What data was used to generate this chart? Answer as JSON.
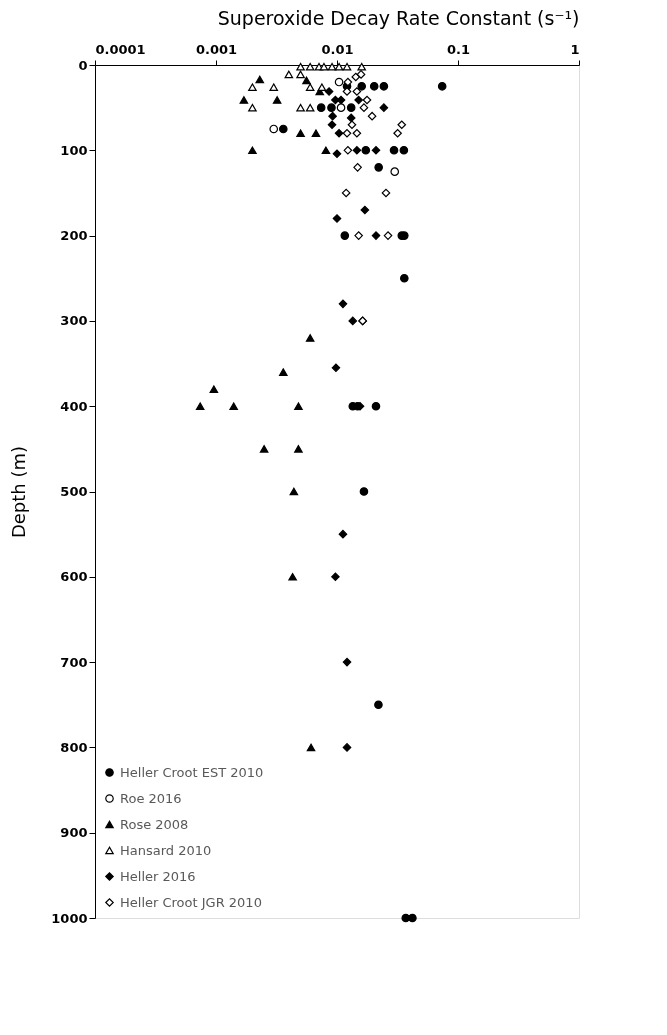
{
  "chart_data": {
    "type": "scatter",
    "title": "Superoxide Decay Rate Constant (s⁻¹)",
    "ylabel": "Depth (m)",
    "log": "x",
    "xlim": [
      0.0001,
      1
    ],
    "xticks": [
      0.0001,
      0.001,
      0.01,
      0.1,
      1
    ],
    "ylim": [
      1000,
      0
    ],
    "yticks": [
      0,
      100,
      200,
      300,
      400,
      500,
      600,
      700,
      800,
      900,
      1000
    ],
    "grid": false,
    "legend": "bottom left",
    "series": [
      {
        "name": "Heller Croot EST 2010",
        "color": "#000000",
        "marker": "circle",
        "x": [
          0.074,
          0.0121,
          0.016,
          0.0203,
          0.0244,
          0.0074,
          0.009,
          0.0131,
          0.0036,
          0.0173,
          0.0296,
          0.0357,
          0.0221,
          0.0116,
          0.0343,
          0.036,
          0.036,
          0.0135,
          0.0148,
          0.021,
          0.0167,
          0.022,
          0.037,
          0.042
        ],
        "values": [
          25,
          25,
          25,
          25,
          25,
          50,
          50,
          50,
          75,
          100,
          100,
          100,
          120,
          200,
          200,
          200,
          250,
          400,
          400,
          400,
          500,
          750,
          1000,
          1000
        ]
      },
      {
        "name": "Roe 2016",
        "color": "#ffffff",
        "marker": "circle",
        "x": [
          0.0104,
          0.0108,
          0.003,
          0.03
        ],
        "values": [
          20,
          50,
          75,
          125
        ]
      },
      {
        "name": "Rose 2008",
        "color": "#000000",
        "marker": "triangle",
        "x": [
          0.0023,
          0.0056,
          0.0017,
          0.0032,
          0.0072,
          0.005,
          0.0067,
          0.002,
          0.0081,
          0.006,
          0.0036,
          0.00096,
          0.00074,
          0.0014,
          0.0048,
          0.0025,
          0.0048,
          0.0044,
          0.0043,
          0.0061
        ],
        "values": [
          17,
          18,
          41,
          41,
          31,
          80,
          80,
          100,
          100,
          320,
          360,
          380,
          400,
          400,
          400,
          450,
          450,
          500,
          600,
          800
        ]
      },
      {
        "name": "Hansard 2010",
        "color": "#ffffff",
        "marker": "triangle",
        "x": [
          0.005,
          0.006,
          0.0071,
          0.0078,
          0.0091,
          0.0104,
          0.0121,
          0.016,
          0.004,
          0.005,
          0.002,
          0.003,
          0.006,
          0.0075,
          0.002,
          0.005,
          0.006
        ],
        "values": [
          2,
          2,
          2,
          2,
          2,
          2,
          2,
          2,
          11,
          11,
          26,
          26,
          26,
          26,
          50,
          50,
          50
        ]
      },
      {
        "name": "Heller 2016",
        "color": "#000000",
        "marker": "diamond",
        "x": [
          0.0086,
          0.0097,
          0.0108,
          0.0151,
          0.0244,
          0.0092,
          0.0131,
          0.0091,
          0.0104,
          0.01,
          0.0146,
          0.021,
          0.017,
          0.01,
          0.021,
          0.0112,
          0.0135,
          0.0163,
          0.0098,
          0.0155,
          0.0112,
          0.0097,
          0.0121,
          0.0121
        ],
        "values": [
          31,
          41,
          41,
          41,
          50,
          60,
          62,
          70,
          80,
          104,
          100,
          100,
          170,
          180,
          200,
          280,
          300,
          300,
          355,
          400,
          550,
          600,
          700,
          800
        ]
      },
      {
        "name": "Heller Croot JGR 2010",
        "color": "#ffffff",
        "marker": "diamond",
        "x": [
          0.0123,
          0.0143,
          0.0158,
          0.0121,
          0.0146,
          0.0177,
          0.0167,
          0.0195,
          0.0133,
          0.0343,
          0.0317,
          0.0121,
          0.0146,
          0.0123,
          0.0148,
          0.0119,
          0.0254,
          0.0151,
          0.0264,
          0.0163
        ],
        "values": [
          20,
          14,
          11,
          31,
          31,
          41,
          50,
          60,
          70,
          70,
          80,
          80,
          80,
          100,
          120,
          150,
          150,
          200,
          200,
          300
        ]
      }
    ]
  }
}
